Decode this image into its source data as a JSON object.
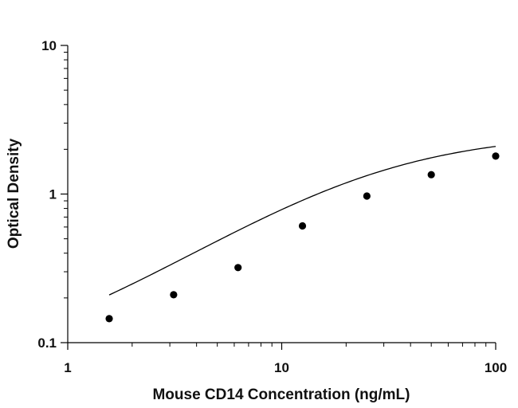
{
  "chart_data": {
    "type": "scatter",
    "xlabel": "Mouse CD14 Concentration (ng/mL)",
    "ylabel": "Optical Density",
    "xscale": "log",
    "yscale": "log",
    "xlim": [
      1,
      100
    ],
    "ylim": [
      0.1,
      10
    ],
    "x_tick_labels": [
      "1",
      "10",
      "100"
    ],
    "y_tick_labels": [
      "0.1",
      "1",
      "10"
    ],
    "grid": false,
    "legend": "none",
    "colors": {
      "points": "#000000",
      "curve": "#000000",
      "axes": "#000000"
    },
    "series": [
      {
        "x": [
          1.5625,
          3.125,
          6.25,
          12.5,
          25,
          50,
          100
        ],
        "y": [
          0.145,
          0.21,
          0.32,
          0.61,
          0.97,
          1.35,
          1.8
        ]
      }
    ],
    "fit_curve": {
      "type": "4PL",
      "bottom": 0.06,
      "top": 2.6,
      "ec50": 25,
      "hill": 1.0,
      "x_range": [
        1.5625,
        100
      ]
    }
  }
}
